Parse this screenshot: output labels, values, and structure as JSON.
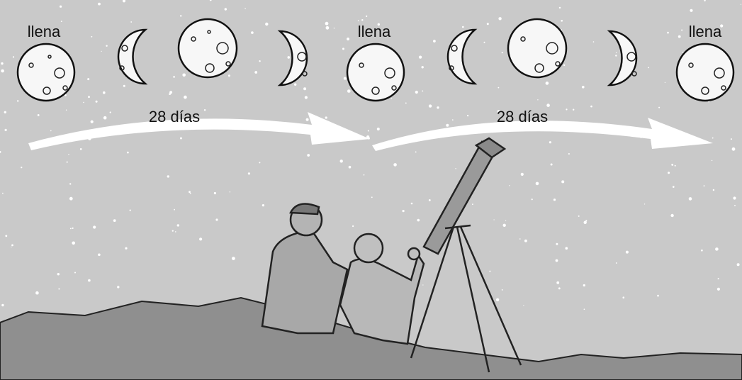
{
  "phase_labels": [
    "llena",
    "llena",
    "llena"
  ],
  "arrow_labels": [
    "28 días",
    "28 días"
  ]
}
